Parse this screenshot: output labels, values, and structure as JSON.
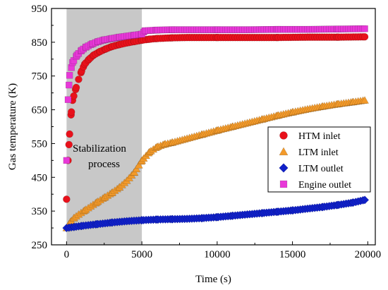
{
  "chart_data": {
    "type": "scatter",
    "xlabel": "Time (s)",
    "ylabel": "Gas temperature (K)",
    "xlim": [
      -1000,
      20500
    ],
    "ylim": [
      250,
      950
    ],
    "xticks": [
      "0",
      "5000",
      "10000",
      "15000",
      "20000"
    ],
    "xtick_values": [
      0,
      5000,
      10000,
      15000,
      20000
    ],
    "yticks": [
      "250",
      "350",
      "450",
      "550",
      "650",
      "750",
      "850",
      "950"
    ],
    "ytick_values": [
      250,
      350,
      450,
      550,
      650,
      750,
      850,
      950
    ],
    "grid": false,
    "legend_position": "center-right",
    "shaded_region": {
      "x_start": 0,
      "x_end": 5000,
      "label": "Stabilization process",
      "color": "#c8c8c8"
    },
    "series": [
      {
        "name": "HTM inlet",
        "marker": "circle",
        "color": "#e8111b",
        "points": [
          [
            0,
            385
          ],
          [
            100,
            500
          ],
          [
            200,
            578
          ],
          [
            300,
            635
          ],
          [
            400,
            678
          ],
          [
            600,
            710
          ],
          [
            800,
            740
          ],
          [
            1000,
            765
          ],
          [
            1200,
            785
          ],
          [
            1500,
            800
          ],
          [
            1800,
            812
          ],
          [
            2200,
            822
          ],
          [
            2600,
            830
          ],
          [
            3000,
            837
          ],
          [
            3500,
            843
          ],
          [
            4000,
            848
          ],
          [
            4500,
            852
          ],
          [
            5000,
            856
          ],
          [
            5500,
            859
          ],
          [
            6000,
            861
          ],
          [
            7000,
            863
          ],
          [
            8000,
            864
          ],
          [
            10000,
            864
          ],
          [
            12000,
            864
          ],
          [
            14000,
            864
          ],
          [
            16000,
            865
          ],
          [
            18000,
            865
          ],
          [
            19800,
            866
          ]
        ]
      },
      {
        "name": "LTM inlet",
        "marker": "triangle-up",
        "color": "#f39a2a",
        "points": [
          [
            0,
            300
          ],
          [
            250,
            318
          ],
          [
            500,
            330
          ],
          [
            800,
            340
          ],
          [
            1200,
            352
          ],
          [
            1600,
            364
          ],
          [
            2000,
            376
          ],
          [
            2500,
            390
          ],
          [
            3000,
            404
          ],
          [
            3500,
            420
          ],
          [
            4000,
            440
          ],
          [
            4500,
            465
          ],
          [
            5000,
            500
          ],
          [
            5500,
            525
          ],
          [
            6000,
            540
          ],
          [
            6500,
            548
          ],
          [
            7000,
            553
          ],
          [
            8000,
            565
          ],
          [
            9000,
            577
          ],
          [
            10000,
            589
          ],
          [
            11000,
            600
          ],
          [
            12000,
            611
          ],
          [
            13000,
            622
          ],
          [
            14000,
            633
          ],
          [
            15000,
            643
          ],
          [
            16000,
            652
          ],
          [
            17000,
            660
          ],
          [
            18000,
            667
          ],
          [
            19000,
            673
          ],
          [
            19800,
            678
          ]
        ]
      },
      {
        "name": "LTM outlet",
        "marker": "diamond",
        "color": "#1020c8",
        "points": [
          [
            0,
            300
          ],
          [
            500,
            303
          ],
          [
            1000,
            306
          ],
          [
            2000,
            311
          ],
          [
            3000,
            316
          ],
          [
            4000,
            320
          ],
          [
            5000,
            323
          ],
          [
            6000,
            325
          ],
          [
            7000,
            326
          ],
          [
            8000,
            327
          ],
          [
            9000,
            329
          ],
          [
            10000,
            332
          ],
          [
            11000,
            336
          ],
          [
            12000,
            340
          ],
          [
            13000,
            344
          ],
          [
            14000,
            348
          ],
          [
            15000,
            352
          ],
          [
            16000,
            357
          ],
          [
            17000,
            362
          ],
          [
            18000,
            368
          ],
          [
            19000,
            375
          ],
          [
            19800,
            383
          ]
        ]
      },
      {
        "name": "Engine outlet",
        "marker": "square",
        "color": "#e838d8",
        "points": [
          [
            0,
            500
          ],
          [
            100,
            680
          ],
          [
            200,
            752
          ],
          [
            400,
            790
          ],
          [
            700,
            812
          ],
          [
            1000,
            826
          ],
          [
            1300,
            836
          ],
          [
            1700,
            845
          ],
          [
            2100,
            852
          ],
          [
            2500,
            857
          ],
          [
            3000,
            861
          ],
          [
            3500,
            865
          ],
          [
            4000,
            868
          ],
          [
            4500,
            871
          ],
          [
            5000,
            874
          ],
          [
            5200,
            884
          ],
          [
            6000,
            886
          ],
          [
            7000,
            887
          ],
          [
            8000,
            887
          ],
          [
            10000,
            887
          ],
          [
            12000,
            887
          ],
          [
            14000,
            888
          ],
          [
            16000,
            888
          ],
          [
            18000,
            889
          ],
          [
            19800,
            890
          ]
        ]
      }
    ]
  }
}
